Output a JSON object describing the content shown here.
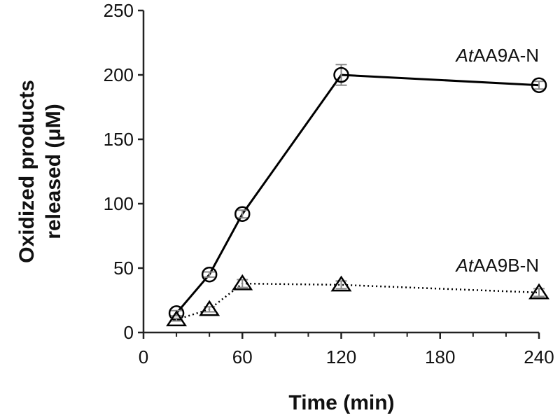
{
  "chart_data": {
    "type": "line",
    "xlabel": "Time (min)",
    "ylabel_lines": [
      "Oxidized products",
      "released (μM)"
    ],
    "xlim": [
      0,
      240
    ],
    "ylim": [
      0,
      250
    ],
    "x_major_ticks": [
      0,
      60,
      120,
      180,
      240
    ],
    "x_minor_ticks": [
      20,
      40,
      80,
      100,
      140,
      160,
      200,
      220
    ],
    "y_ticks": [
      0,
      50,
      100,
      150,
      200,
      250
    ],
    "grid": false,
    "series": [
      {
        "label_prefix": "At",
        "label_suffix": "AA9A-N",
        "marker": "circle",
        "line": "solid",
        "points": [
          {
            "x": 20,
            "y": 15,
            "err": 2
          },
          {
            "x": 40,
            "y": 45,
            "err": 2
          },
          {
            "x": 60,
            "y": 92,
            "err": 3
          },
          {
            "x": 120,
            "y": 200,
            "err": 8
          },
          {
            "x": 240,
            "y": 192,
            "err": 3
          }
        ]
      },
      {
        "label_prefix": "At",
        "label_suffix": "AA9B-N",
        "marker": "triangle",
        "line": "dotted",
        "points": [
          {
            "x": 20,
            "y": 10,
            "err": 1
          },
          {
            "x": 40,
            "y": 18,
            "err": 2
          },
          {
            "x": 60,
            "y": 38,
            "err": 3
          },
          {
            "x": 120,
            "y": 37,
            "err": 3
          },
          {
            "x": 240,
            "y": 31,
            "err": 3
          }
        ]
      }
    ]
  }
}
